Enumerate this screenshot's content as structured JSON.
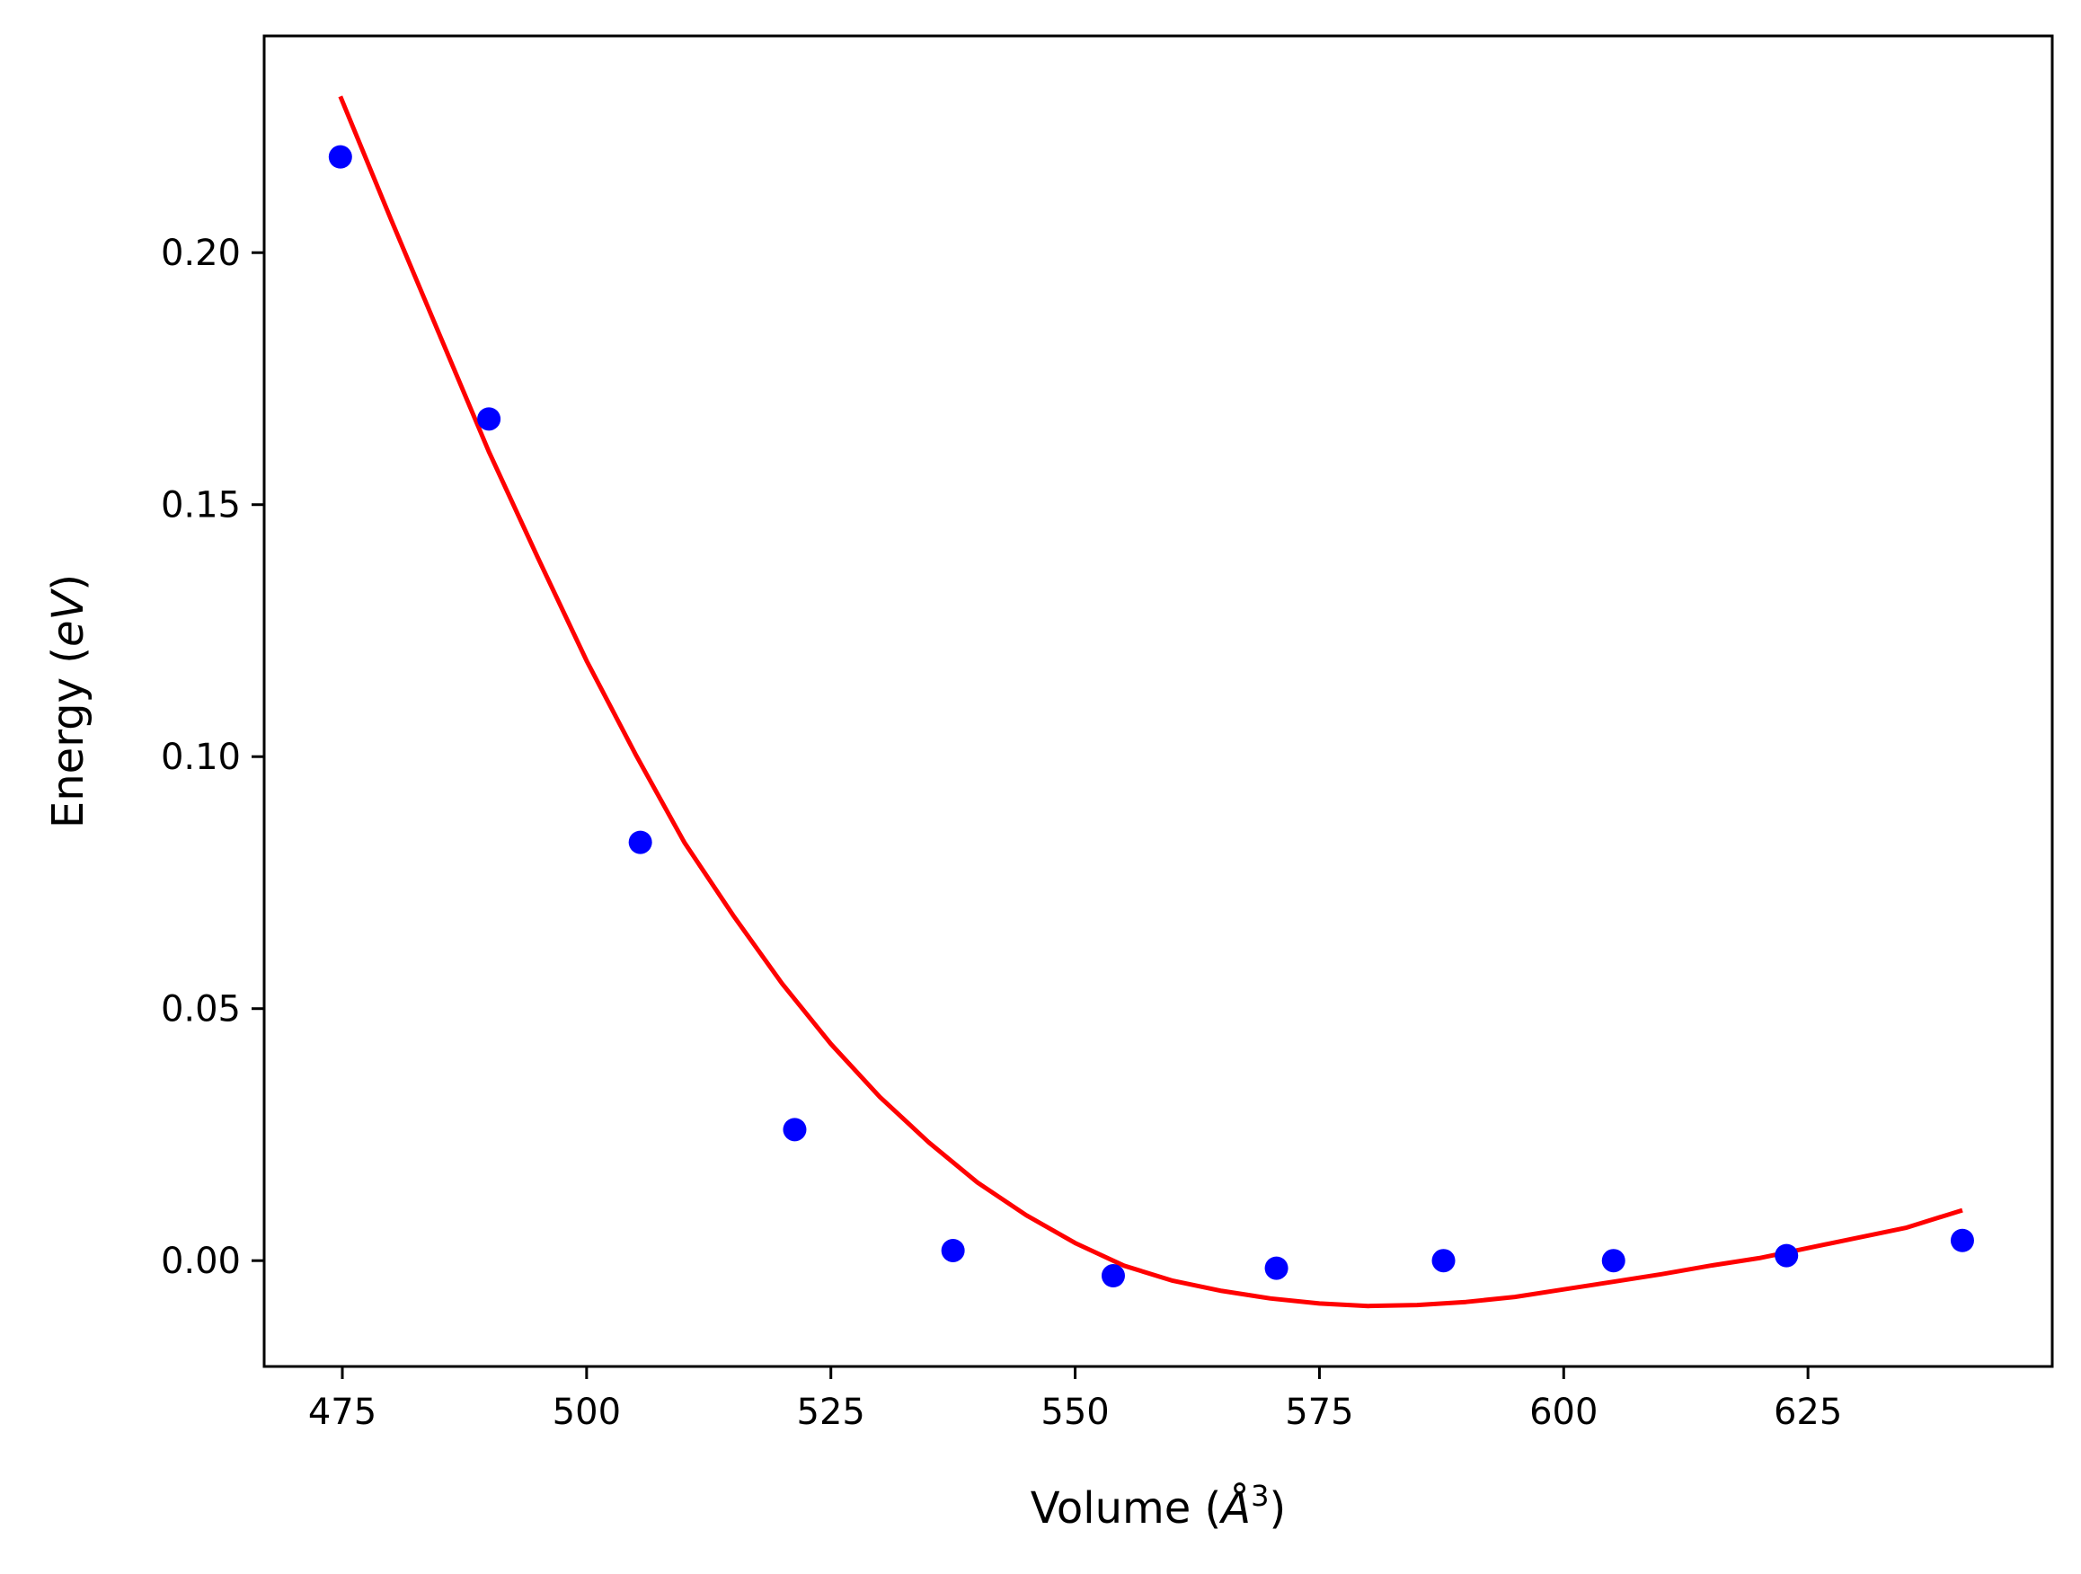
{
  "chart_data": {
    "type": "scatter",
    "title": "",
    "xlabel": "Volume (",
    "xlabel_symbol": "Å",
    "xlabel_exponent": "3",
    "xlabel_suffix": ")",
    "ylabel": "Energy (",
    "ylabel_unit": "eV",
    "ylabel_suffix": ")",
    "xlim": [
      467,
      650
    ],
    "ylim": [
      -0.021,
      0.243
    ],
    "xticks": [
      475,
      500,
      525,
      550,
      575,
      600,
      625
    ],
    "xtick_labels": [
      "475",
      "500",
      "525",
      "550",
      "575",
      "600",
      "625"
    ],
    "yticks": [
      0.0,
      0.05,
      0.1,
      0.15,
      0.2
    ],
    "ytick_labels": [
      "0.00",
      "0.05",
      "0.10",
      "0.15",
      "0.20"
    ],
    "grid": false,
    "series": [
      {
        "kind": "points",
        "color": "#0000ff",
        "x": [
          474.8,
          490.0,
          505.5,
          521.3,
          537.5,
          553.9,
          570.6,
          587.7,
          605.1,
          622.8,
          640.8
        ],
        "y": [
          0.219,
          0.167,
          0.083,
          0.026,
          0.002,
          -0.003,
          -0.0015,
          0.0,
          0.0,
          0.001,
          0.004
        ]
      },
      {
        "kind": "fit-curve",
        "color": "#ff0000",
        "x": [
          474.8,
          480,
          485,
          490,
          495,
          500,
          505,
          510,
          515,
          520,
          525,
          530,
          535,
          540,
          545,
          550,
          555,
          560,
          565,
          570,
          575,
          580,
          585,
          590,
          595,
          600,
          605,
          610,
          615,
          620,
          625,
          630,
          635,
          640.8
        ],
        "y": [
          0.231,
          0.2065,
          0.1835,
          0.1605,
          0.1395,
          0.119,
          0.1005,
          0.083,
          0.0685,
          0.055,
          0.043,
          0.0325,
          0.0235,
          0.0155,
          0.009,
          0.0035,
          -0.001,
          -0.004,
          -0.006,
          -0.0075,
          -0.0085,
          -0.009,
          -0.0088,
          -0.0082,
          -0.0072,
          -0.0057,
          -0.0042,
          -0.0027,
          -0.001,
          0.0005,
          0.0025,
          0.0045,
          0.0065,
          0.01
        ]
      }
    ]
  }
}
